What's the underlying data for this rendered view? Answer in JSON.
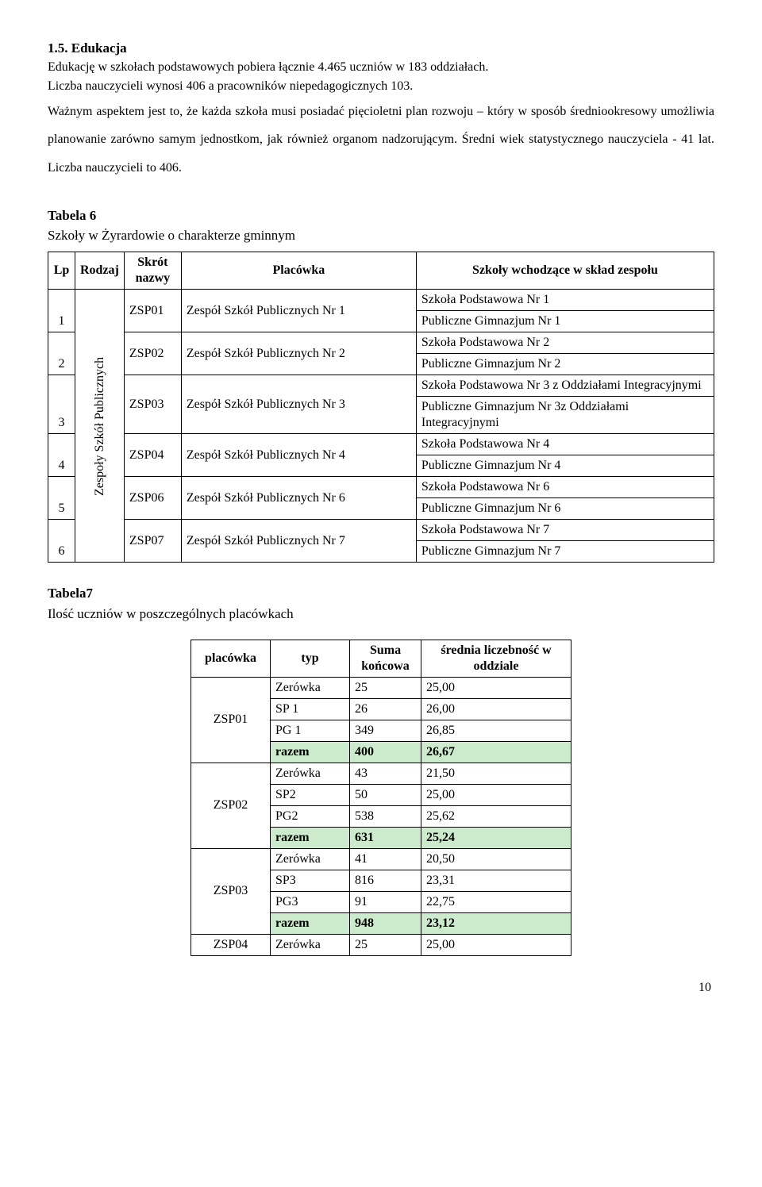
{
  "heading": "1.5. Edukacja",
  "paragraphs": {
    "p1": "Edukację w szkołach podstawowych pobiera łącznie 4.465 uczniów w 183 oddziałach.",
    "p2": "Liczba nauczycieli wynosi 406 a pracowników niepedagogicznych 103.",
    "p3": "Ważnym aspektem jest to, że każda szkoła musi posiadać pięcioletni plan rozwoju – który w sposób średniookresowy umożliwia planowanie zarówno samym jednostkom, jak również organom nadzorującym. Średni wiek statystycznego nauczyciela - 41 lat. Liczba nauczycieli to 406."
  },
  "table6": {
    "label": "Tabela 6",
    "title": "Szkoły w Żyrardowie o charakterze gminnym",
    "headers": {
      "lp": "Lp",
      "rodzaj": "Rodzaj",
      "skrot": "Skrót nazwy",
      "placowka": "Placówka",
      "sklad": "Szkoły wchodzące w skład zespołu"
    },
    "rodzaj_group": "Zespoły Szkół Publicznych",
    "rows": [
      {
        "lp": "1",
        "skrot": "ZSP01",
        "placowka": "Zespół Szkół Publicznych Nr 1",
        "sklad": [
          "Szkoła Podstawowa Nr 1",
          "Publiczne Gimnazjum Nr 1"
        ]
      },
      {
        "lp": "2",
        "skrot": "ZSP02",
        "placowka": "Zespół Szkół Publicznych Nr 2",
        "sklad": [
          "Szkoła Podstawowa Nr 2",
          "Publiczne Gimnazjum Nr 2"
        ]
      },
      {
        "lp": "3",
        "skrot": "ZSP03",
        "placowka": "Zespół Szkół Publicznych Nr 3",
        "sklad": [
          "Szkoła Podstawowa Nr 3 z Oddziałami Integracyjnymi",
          "Publiczne Gimnazjum Nr 3z Oddziałami Integracyjnymi"
        ]
      },
      {
        "lp": "4",
        "skrot": "ZSP04",
        "placowka": "Zespół Szkół Publicznych Nr 4",
        "sklad": [
          "Szkoła Podstawowa Nr 4",
          "Publiczne Gimnazjum Nr 4"
        ]
      },
      {
        "lp": "5",
        "skrot": "ZSP06",
        "placowka": "Zespół Szkół Publicznych Nr 6",
        "sklad": [
          "Szkoła Podstawowa Nr 6",
          "Publiczne Gimnazjum Nr 6"
        ]
      },
      {
        "lp": "6",
        "skrot": "ZSP07",
        "placowka": "Zespół Szkół Publicznych Nr 7",
        "sklad": [
          "Szkoła Podstawowa Nr 7",
          "Publiczne Gimnazjum Nr 7"
        ]
      }
    ]
  },
  "table7": {
    "label": "Tabela7",
    "title": "Ilość uczniów w poszczególnych placówkach",
    "headers": {
      "placowka": "placówka",
      "typ": "typ",
      "suma": "Suma końcowa",
      "srednia": "średnia liczebność w oddziale"
    },
    "sum_label": "razem",
    "sum_color": "#ccebcc",
    "groups": [
      {
        "placowka": "ZSP01",
        "rows": [
          {
            "typ": "Zerówka",
            "suma": "25",
            "srednia": "25,00"
          },
          {
            "typ": "SP 1",
            "suma": "26",
            "srednia": "26,00"
          },
          {
            "typ": "PG 1",
            "suma": "349",
            "srednia": "26,85"
          }
        ],
        "sum": {
          "suma": "400",
          "srednia": "26,67"
        }
      },
      {
        "placowka": "ZSP02",
        "rows": [
          {
            "typ": "Zerówka",
            "suma": "43",
            "srednia": "21,50"
          },
          {
            "typ": "SP2",
            "suma": "50",
            "srednia": "25,00"
          },
          {
            "typ": "PG2",
            "suma": "538",
            "srednia": "25,62"
          }
        ],
        "sum": {
          "suma": "631",
          "srednia": "25,24"
        }
      },
      {
        "placowka": "ZSP03",
        "rows": [
          {
            "typ": "Zerówka",
            "suma": "41",
            "srednia": "20,50"
          },
          {
            "typ": "SP3",
            "suma": "816",
            "srednia": "23,31"
          },
          {
            "typ": "PG3",
            "suma": "91",
            "srednia": "22,75"
          }
        ],
        "sum": {
          "suma": "948",
          "srednia": "23,12"
        }
      },
      {
        "placowka": "ZSP04",
        "rows": [
          {
            "typ": "Zerówka",
            "suma": "25",
            "srednia": "25,00"
          }
        ],
        "sum": null
      }
    ]
  },
  "page_number": "10"
}
